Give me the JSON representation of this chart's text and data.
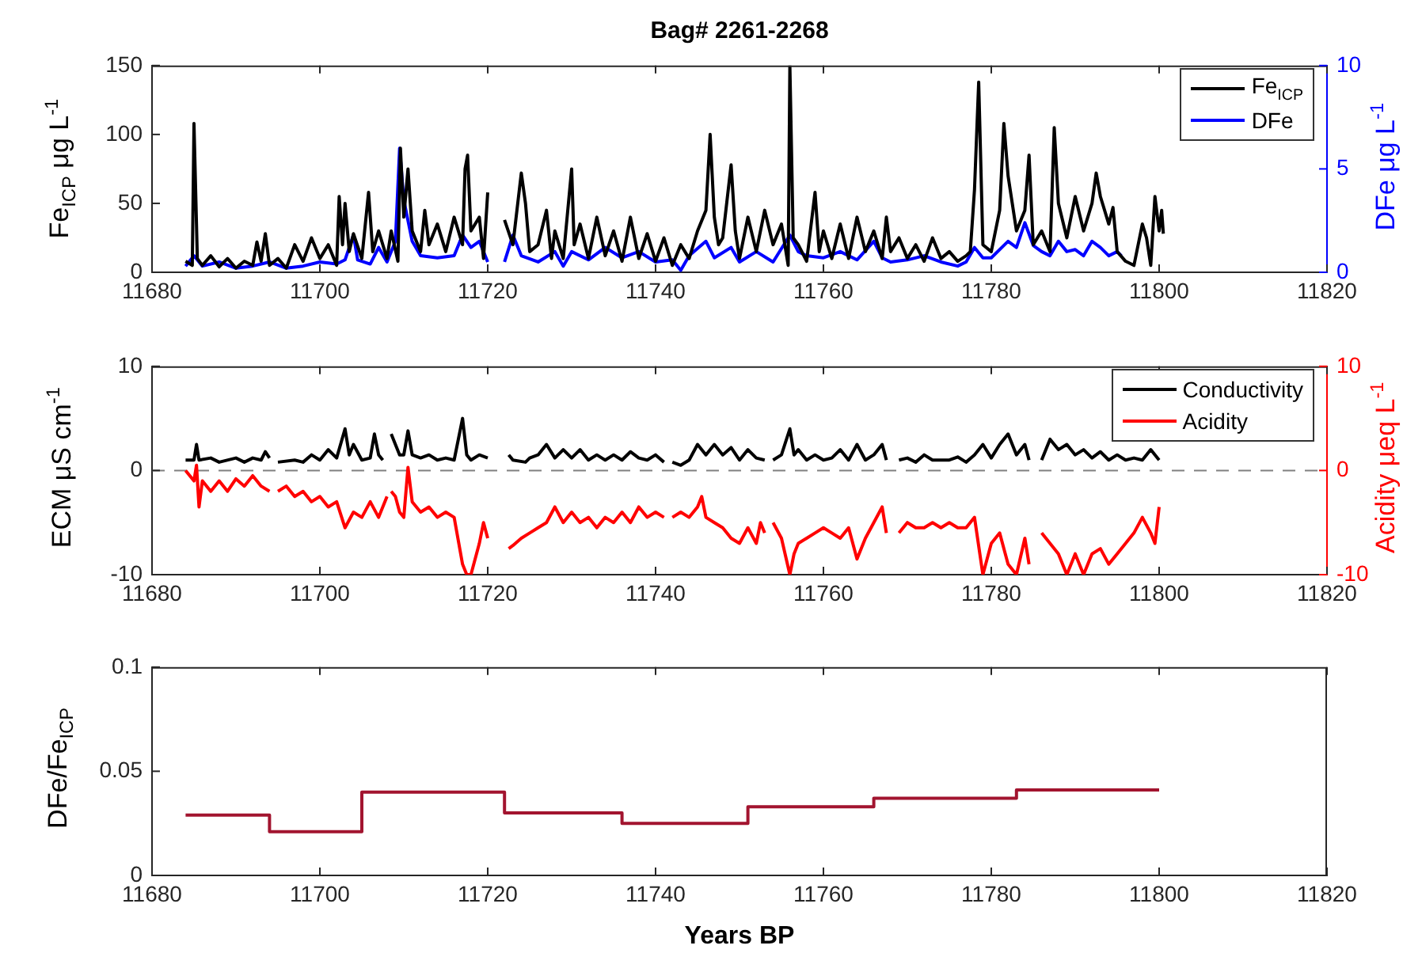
{
  "chart_data": [
    {
      "type": "line",
      "title": "Bag# 2261-2268",
      "ylabel": "Fe$_{ICP}$ μg L$^{-1}$",
      "y2label": "DFe μg L$^{-1}$",
      "xlim": [
        11680,
        11820
      ],
      "xticks": [
        11680,
        11700,
        11720,
        11740,
        11760,
        11780,
        11800,
        11820
      ],
      "ylim": [
        0,
        150
      ],
      "yticks": [
        0,
        50,
        100,
        150
      ],
      "y2lim": [
        0,
        10
      ],
      "y2ticks": [
        0,
        5,
        10
      ],
      "grid": false,
      "legend": "top right",
      "series": [
        {
          "name": "Fe$_{ICP}$",
          "color": "#000000",
          "x": [
            11684,
            11684.8,
            11685,
            11685.4,
            11686,
            11687,
            11688,
            11689,
            11690,
            11691,
            11692,
            11692.5,
            11693,
            11693.5,
            11694,
            11695,
            11696,
            11697,
            11698,
            11699,
            11700,
            11701,
            11702,
            11702.3,
            11702.7,
            11703,
            11703.5,
            11704,
            11705,
            11705.8,
            11706.3,
            11707,
            11708,
            11708.5,
            11709.3,
            11709.6,
            11710,
            11710.5,
            11711,
            11712,
            11712.5,
            11713,
            11714,
            11715,
            11716,
            11717,
            11717.3,
            11717.6,
            11718,
            11719,
            11719.5,
            11720,
            11721,
            11722,
            11723,
            11724,
            11724.5,
            11725,
            11726,
            11727,
            11727.6,
            11728,
            11729,
            11730,
            11730.3,
            11731,
            11732,
            11733,
            11734,
            11735,
            11736,
            11737,
            11738,
            11739,
            11740,
            11741,
            11742,
            11743,
            11744,
            11745,
            11746,
            11746.5,
            11747,
            11747.5,
            11748,
            11749,
            11749.5,
            11750,
            11751,
            11752,
            11753,
            11754,
            11755,
            11755.8,
            11756,
            11756.4,
            11757,
            11758,
            11759,
            11759.5,
            11760,
            11761,
            11762,
            11763,
            11764,
            11765,
            11766,
            11767,
            11767.5,
            11768,
            11769,
            11770,
            11771,
            11772,
            11773,
            11774,
            11775,
            11776,
            11777,
            11777.5,
            11778,
            11778.5,
            11779,
            11780,
            11781,
            11781.5,
            11782,
            11783,
            11784,
            11784.5,
            11785,
            11786,
            11787,
            11787.5,
            11788,
            11789,
            11790,
            11791,
            11792,
            11792.5,
            11793,
            11794,
            11794.5,
            11795,
            11796,
            11797,
            11798,
            11798.5,
            11799,
            11799.5,
            11800,
            11800.3,
            11800.5
          ],
          "values": [
            8,
            5,
            108,
            10,
            5,
            12,
            4,
            10,
            3,
            8,
            5,
            22,
            8,
            28,
            5,
            10,
            3,
            20,
            8,
            25,
            10,
            20,
            5,
            55,
            20,
            50,
            15,
            28,
            10,
            58,
            15,
            30,
            10,
            30,
            8,
            90,
            40,
            75,
            30,
            15,
            45,
            20,
            35,
            15,
            40,
            20,
            75,
            85,
            30,
            40,
            10,
            58,
            null,
            38,
            20,
            72,
            50,
            15,
            20,
            45,
            10,
            30,
            10,
            75,
            20,
            35,
            10,
            40,
            12,
            30,
            8,
            40,
            10,
            28,
            8,
            25,
            5,
            20,
            10,
            30,
            45,
            100,
            40,
            20,
            25,
            78,
            30,
            10,
            40,
            15,
            45,
            20,
            35,
            5,
            150,
            25,
            20,
            8,
            58,
            15,
            30,
            10,
            35,
            10,
            40,
            15,
            30,
            10,
            40,
            15,
            25,
            10,
            20,
            8,
            25,
            10,
            15,
            8,
            12,
            15,
            60,
            138,
            20,
            15,
            45,
            108,
            70,
            30,
            45,
            85,
            20,
            30,
            15,
            105,
            50,
            25,
            55,
            30,
            50,
            72,
            55,
            35,
            47,
            15,
            8,
            5,
            35,
            25,
            5,
            55,
            30,
            45,
            28
          ]
        },
        {
          "name": "DFe",
          "color": "#0000ff",
          "axis": "y2",
          "x": [
            11684,
            11685,
            11686,
            11688,
            11690,
            11692,
            11694,
            11696,
            11698,
            11700,
            11702,
            11703,
            11704,
            11704.5,
            11706,
            11707,
            11708,
            11709,
            11709.5,
            11710,
            11711,
            11712,
            11714,
            11716,
            11717,
            11718,
            11719,
            11720,
            11721,
            11722,
            11723,
            11724,
            11726,
            11728,
            11729,
            11730,
            11732,
            11734,
            11736,
            11738,
            11740,
            11742,
            11743,
            11744,
            11746,
            11747,
            11749,
            11750,
            11752,
            11754,
            11756,
            11757,
            11758,
            11760,
            11762,
            11764,
            11766,
            11767,
            11768,
            11770,
            11772,
            11774,
            11776,
            11777,
            11778,
            11779,
            11780,
            11782,
            11783,
            11784,
            11785,
            11786,
            11787,
            11788,
            11789,
            11790,
            11791,
            11792,
            11793,
            11794,
            11795,
            11795.5
          ],
          "values": [
            0.3,
            0.8,
            0.3,
            0.5,
            0.2,
            0.3,
            0.5,
            0.2,
            0.3,
            0.5,
            0.4,
            0.6,
            1.8,
            0.6,
            0.4,
            1.2,
            0.5,
            1.5,
            6,
            3.5,
            1.5,
            0.8,
            0.7,
            0.8,
            1.8,
            1.2,
            1.5,
            0.5,
            null,
            0.5,
            1.8,
            0.8,
            0.5,
            1,
            0.3,
            1,
            0.6,
            1.2,
            0.7,
            1,
            0.5,
            0.6,
            0.1,
            0.8,
            1.5,
            0.7,
            1.2,
            0.5,
            1,
            0.5,
            1.8,
            1,
            0.8,
            0.7,
            1,
            0.6,
            1.5,
            0.7,
            0.5,
            0.6,
            0.8,
            0.5,
            0.3,
            0.5,
            1.2,
            0.7,
            0.7,
            1.5,
            1.2,
            2.4,
            1.3,
            1,
            0.8,
            1.5,
            1,
            1.1,
            0.8,
            1.5,
            1.2,
            0.8,
            1,
            0.8
          ]
        }
      ]
    },
    {
      "type": "line",
      "ylabel": "ECM μS cm$^{-1}$",
      "y2label": "Acidity μeq L$^{-1}$",
      "xlim": [
        11680,
        11820
      ],
      "xticks": [
        11680,
        11700,
        11720,
        11740,
        11760,
        11780,
        11800,
        11820
      ],
      "ylim": [
        -10,
        10
      ],
      "yticks": [
        -10,
        0,
        10
      ],
      "y2lim": [
        -10,
        10
      ],
      "y2ticks": [
        -10,
        0,
        10
      ],
      "grid": false,
      "legend": "top right",
      "ref_lines": [
        {
          "axis": "y",
          "value": 0,
          "color": "#808080",
          "line_style": "dashed"
        }
      ],
      "series": [
        {
          "name": "Conductivity",
          "color": "#000000",
          "x": [
            11684,
            11685,
            11685.3,
            11685.6,
            11687,
            11688,
            11690,
            11691,
            11692,
            11693,
            11693.5,
            11694,
            11694.5,
            11695,
            11697,
            11698,
            11699,
            11700,
            11701,
            11702,
            11703,
            11703.5,
            11704,
            11705,
            11706,
            11706.5,
            11707,
            11707.5,
            11708,
            11708.5,
            11709,
            11709.5,
            11710,
            11710.5,
            11711,
            11712,
            11713,
            11714,
            11715,
            11716,
            11717,
            11717.5,
            11718,
            11719,
            11720,
            11721,
            11722.5,
            11722.8,
            11723,
            11724.5,
            11725,
            11726,
            11727,
            11728,
            11729,
            11730,
            11731,
            11732,
            11733,
            11734,
            11735,
            11736,
            11737,
            11738,
            11739,
            11740,
            11741,
            11741.5,
            11742,
            11743,
            11744,
            11745,
            11746,
            11747,
            11748,
            11749,
            11750,
            11751,
            11752,
            11753,
            11753.5,
            11754,
            11755,
            11756,
            11756.5,
            11757,
            11758,
            11759,
            11760,
            11761,
            11762,
            11763,
            11764,
            11765,
            11766,
            11767,
            11767.5,
            11768,
            11769,
            11770,
            11771,
            11772,
            11773,
            11775,
            11776,
            11777,
            11778,
            11779,
            11780,
            11781,
            11782,
            11783,
            11784,
            11784.5,
            11785,
            11786,
            11787,
            11788,
            11789,
            11790,
            11791,
            11792,
            11793,
            11794,
            11795,
            11796,
            11797,
            11798,
            11799,
            11800
          ],
          "values": [
            1,
            1,
            2.5,
            1,
            1.2,
            0.8,
            1.2,
            0.8,
            1.2,
            1,
            1.8,
            1.2,
            null,
            0.8,
            1,
            0.8,
            1.5,
            1,
            2,
            1.2,
            4,
            1.5,
            2.5,
            1,
            1.2,
            3.5,
            1.5,
            1,
            null,
            3.5,
            2.5,
            1.5,
            1.5,
            3.8,
            1.5,
            1.2,
            1.5,
            1,
            1.2,
            1,
            5,
            1.5,
            1,
            1.5,
            1.2,
            null,
            1.5,
            1.2,
            1,
            0.8,
            1.2,
            1.5,
            2.5,
            1.2,
            2,
            1.2,
            2,
            1,
            1.5,
            1,
            1.5,
            1,
            1.8,
            1.2,
            1,
            1.5,
            0.8,
            null,
            0.8,
            0.5,
            1,
            2.5,
            1.5,
            2.5,
            1.5,
            2.2,
            1,
            2,
            1.2,
            1,
            null,
            1,
            1.5,
            4,
            1.5,
            2,
            1,
            1.5,
            1,
            1.2,
            2,
            1,
            2.5,
            1,
            1.5,
            2.5,
            1,
            null,
            1,
            1.2,
            0.8,
            1.5,
            1,
            1,
            1.3,
            0.8,
            1.5,
            2.5,
            1.2,
            2.5,
            3.5,
            1.5,
            2.5,
            1,
            null,
            1,
            3,
            2,
            2.5,
            1.5,
            2,
            1.2,
            1.8,
            1,
            1.5,
            1,
            1.2,
            1,
            2,
            1
          ]
        },
        {
          "name": "Acidity",
          "color": "#ff0000",
          "axis": "y2",
          "x": [
            11684,
            11685,
            11685.3,
            11685.6,
            11686,
            11687,
            11688,
            11689,
            11690,
            11691,
            11692,
            11693,
            11694,
            11694.5,
            11695,
            11696,
            11697,
            11698,
            11699,
            11700,
            11701,
            11702,
            11703,
            11704,
            11705,
            11706,
            11707,
            11708,
            11708.2,
            11708.5,
            11709,
            11709.5,
            11710,
            11710.5,
            11711,
            11712,
            11713,
            11714,
            11715,
            11716,
            11717,
            11717.5,
            11718,
            11719,
            11719.5,
            11720,
            11721,
            11722.5,
            11723,
            11724,
            11725,
            11726,
            11727,
            11728,
            11729,
            11730,
            11731,
            11732,
            11733,
            11734,
            11735,
            11736,
            11737,
            11738,
            11739,
            11740,
            11741,
            11741.5,
            11742,
            11743,
            11744,
            11745,
            11745.5,
            11746,
            11747,
            11748,
            11749,
            11750,
            11751,
            11752,
            11752.5,
            11753,
            11753.5,
            11754,
            11755,
            11756,
            11756.5,
            11757,
            11758,
            11759,
            11760,
            11761,
            11762,
            11763,
            11764,
            11765,
            11766,
            11767,
            11767.5,
            11768,
            11769,
            11770,
            11771,
            11772,
            11773,
            11774,
            11775,
            11776,
            11777,
            11778,
            11779,
            11780,
            11781,
            11782,
            11783,
            11784,
            11784.5,
            11785,
            11786,
            11787,
            11788,
            11789,
            11790,
            11791,
            11792,
            11793,
            11794,
            11795,
            11796,
            11797,
            11798,
            11799,
            11799.5,
            11800
          ],
          "values": [
            0,
            -1,
            0.5,
            -3.5,
            -1,
            -2,
            -1,
            -2,
            -0.8,
            -1.5,
            -0.5,
            -1.5,
            -2,
            null,
            -2,
            -1.5,
            -2.5,
            -2,
            -3,
            -2.5,
            -3.5,
            -3,
            -5.5,
            -4,
            -4.5,
            -3,
            -4.5,
            -2.5,
            null,
            -2,
            -2.5,
            -4,
            -4.5,
            0.3,
            -3,
            -4,
            -3.5,
            -4.5,
            -4,
            -4.5,
            -9,
            -10,
            -10,
            -7,
            -5,
            -6.5,
            null,
            -7.5,
            -7.2,
            -6.5,
            -6,
            -5.5,
            -5,
            -3.5,
            -5,
            -4,
            -5,
            -4.5,
            -5.5,
            -4.5,
            -5,
            -4,
            -5,
            -3.5,
            -4.5,
            -4,
            -4.5,
            null,
            -4.5,
            -4,
            -4.5,
            -3.5,
            -2.5,
            -4.5,
            -5,
            -5.5,
            -6.5,
            -7,
            -5.5,
            -7,
            -5,
            -6,
            null,
            -5,
            -6.5,
            -10,
            -8,
            -7,
            -6.5,
            -6,
            -5.5,
            -6,
            -6.5,
            -5.5,
            -8.5,
            -6.5,
            -5,
            -3.5,
            -6,
            null,
            -6,
            -5,
            -5.5,
            -5.5,
            -5,
            -5.5,
            -5,
            -5.5,
            -5.5,
            -4.5,
            -10,
            -7,
            -6,
            -9,
            -10,
            -6.5,
            -9,
            null,
            -6,
            -7,
            -8,
            -10,
            -8,
            -10,
            -8,
            -7.5,
            -9,
            -8,
            -7,
            -6,
            -4.5,
            -6,
            -7,
            -3.5
          ]
        }
      ]
    },
    {
      "type": "step",
      "ylabel": "DFe/Fe$_{ICP}$",
      "xlabel": "Years BP",
      "xlim": [
        11680,
        11820
      ],
      "xticks": [
        11680,
        11700,
        11720,
        11740,
        11760,
        11780,
        11800,
        11820
      ],
      "ylim": [
        0,
        0.1
      ],
      "yticks": [
        0,
        0.05,
        0.1
      ],
      "grid": false,
      "legend": false,
      "series": [
        {
          "color": "#a2142f",
          "x": [
            11684,
            11694,
            11705,
            11722,
            11736,
            11751,
            11766,
            11783,
            11800
          ],
          "values": [
            0.029,
            0.021,
            0.04,
            0.03,
            0.025,
            0.033,
            0.037,
            0.041,
            0.041
          ]
        }
      ]
    }
  ]
}
